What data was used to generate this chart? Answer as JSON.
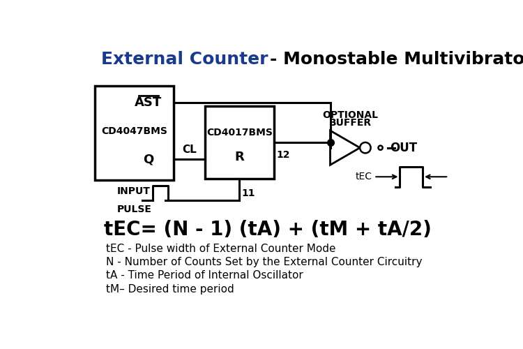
{
  "title_blue": "External Counter",
  "title_black": "- Monostable Multivibrator",
  "title_fontsize": 18,
  "bg_color": "#ffffff",
  "line_color": "#000000",
  "box1_label_ast": "AST",
  "box1_label_chip": "CD4047BMS",
  "box1_label_q": "Q",
  "box2_label_chip": "CD4017BMS",
  "box2_label_r": "R",
  "formula": "tEC= (N - 1) (tA) + (tM + tA/2)",
  "formula_fontsize": 20,
  "desc_lines": [
    "tEC - Pulse width of External Counter Mode",
    "N - Number of Counts Set by the External Counter Circuitry",
    "tA - Time Period of Internal Oscillator",
    "tM– Desired time period"
  ],
  "desc_fontsize": 11,
  "cl_label": "CL",
  "pin12_label": "12",
  "pin11_label": "11",
  "optional_buffer_label1": "OPTIONAL",
  "optional_buffer_label2": "BUFFER",
  "out_label": "OUT",
  "input_pulse_label1": "INPUT",
  "input_pulse_label2": "PULSE",
  "tec_label": "tEC"
}
